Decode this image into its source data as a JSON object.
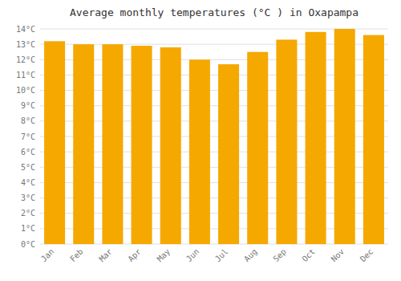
{
  "chart_data": {
    "type": "bar",
    "title": "Average monthly temperatures (°C ) in Oxapampa",
    "categories": [
      "Jan",
      "Feb",
      "Mar",
      "Apr",
      "May",
      "Jun",
      "Jul",
      "Aug",
      "Sep",
      "Oct",
      "Nov",
      "Dec"
    ],
    "values": [
      13.2,
      13.0,
      13.0,
      12.9,
      12.8,
      12.0,
      11.7,
      12.5,
      13.3,
      13.8,
      14.0,
      13.6
    ],
    "color": "#F5A800",
    "ylim": [
      0,
      14
    ],
    "yticks": [
      {
        "value": 0,
        "label": "0°C"
      },
      {
        "value": 1,
        "label": "1°C"
      },
      {
        "value": 2,
        "label": "2°C"
      },
      {
        "value": 3,
        "label": "3°C"
      },
      {
        "value": 4,
        "label": "4°C"
      },
      {
        "value": 5,
        "label": "5°C"
      },
      {
        "value": 6,
        "label": "6°C"
      },
      {
        "value": 7,
        "label": "7°C"
      },
      {
        "value": 8,
        "label": "8°C"
      },
      {
        "value": 9,
        "label": "9°C"
      },
      {
        "value": 10,
        "label": "10°C"
      },
      {
        "value": 11,
        "label": "11°C"
      },
      {
        "value": 12,
        "label": "12°C"
      },
      {
        "value": 13,
        "label": "13°C"
      },
      {
        "value": 14,
        "label": "14°C"
      }
    ],
    "grid": true
  }
}
